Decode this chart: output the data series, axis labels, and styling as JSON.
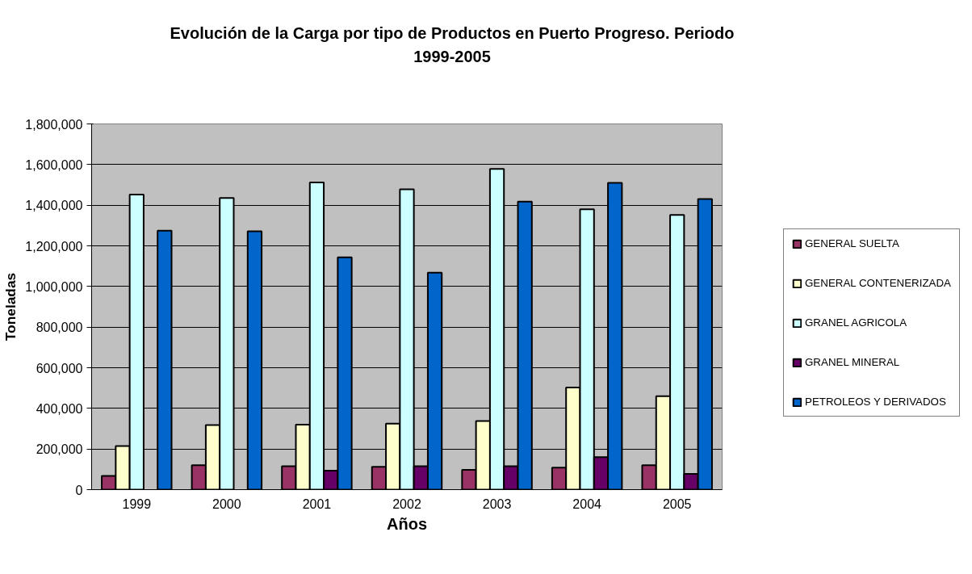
{
  "chart_data": {
    "type": "bar",
    "title": "Evolución de la Carga por tipo de Productos en Puerto Progreso. Periodo 1999-2005",
    "xlabel": "Años",
    "ylabel": "Toneladas",
    "categories": [
      "1999",
      "2000",
      "2001",
      "2002",
      "2003",
      "2004",
      "2005"
    ],
    "series": [
      {
        "name": "GENERAL SUELTA",
        "color": "#993366",
        "values": [
          68000,
          120000,
          115000,
          112000,
          97000,
          108000,
          120000
        ]
      },
      {
        "name": "GENERAL CONTENERIZADA",
        "color": "#ffffcc",
        "values": [
          215000,
          318000,
          320000,
          325000,
          338000,
          503000,
          460000
        ]
      },
      {
        "name": "GRANEL AGRICOLA",
        "color": "#ccffff",
        "values": [
          1452000,
          1435000,
          1512000,
          1478000,
          1578000,
          1380000,
          1352000
        ]
      },
      {
        "name": "GRANEL MINERAL",
        "color": "#660066",
        "values": [
          null,
          null,
          93000,
          115000,
          115000,
          160000,
          77000
        ]
      },
      {
        "name": "PETROLEOS Y DERIVADOS",
        "color": "#0066cc",
        "values": [
          1275000,
          1272000,
          1143000,
          1068000,
          1418000,
          1510000,
          1430000
        ]
      }
    ],
    "ylim": [
      0,
      1800000
    ],
    "yticks": [
      {
        "value": 0,
        "label": "0"
      },
      {
        "value": 200000,
        "label": "200,000"
      },
      {
        "value": 400000,
        "label": "400,000"
      },
      {
        "value": 600000,
        "label": "600,000"
      },
      {
        "value": 800000,
        "label": "800,000"
      },
      {
        "value": 1000000,
        "label": "1,000,000"
      },
      {
        "value": 1200000,
        "label": "1,200,000"
      },
      {
        "value": 1400000,
        "label": "1,400,000"
      },
      {
        "value": 1600000,
        "label": "1,600,000"
      },
      {
        "value": 1800000,
        "label": "1,800,000"
      }
    ],
    "grid": "y",
    "legend": "right"
  }
}
